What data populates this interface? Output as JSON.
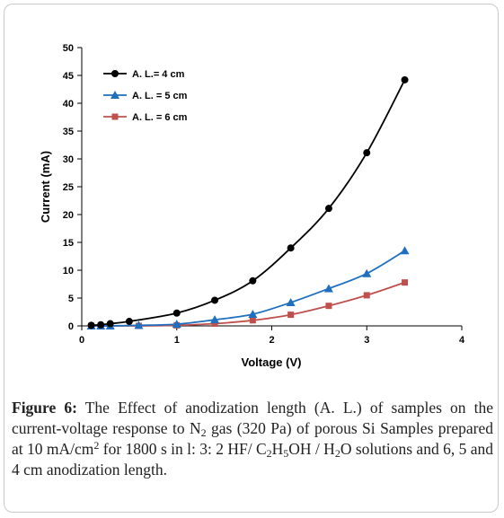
{
  "chart_data": {
    "type": "line",
    "xlabel": "Voltage (V)",
    "ylabel": "Current (mA)",
    "xlim": [
      0,
      4
    ],
    "ylim": [
      0,
      50
    ],
    "xticks": [
      "0",
      "1",
      "2",
      "3",
      "4"
    ],
    "yticks": [
      "0",
      "5",
      "10",
      "15",
      "20",
      "25",
      "30",
      "35",
      "40",
      "45",
      "50"
    ],
    "grid": false,
    "legend_position": "top-left",
    "series": [
      {
        "name": "A. L.= 4 cm",
        "color": "#000000",
        "marker": "circle",
        "x": [
          0.1,
          0.2,
          0.3,
          0.5,
          1.0,
          1.4,
          1.8,
          2.2,
          2.6,
          3.0,
          3.4
        ],
        "y": [
          0.1,
          0.2,
          0.4,
          0.8,
          2.3,
          4.6,
          8.1,
          14.0,
          21.1,
          31.1,
          44.2
        ]
      },
      {
        "name": "A. L. = 5 cm",
        "color": "#1f6fbf",
        "marker": "triangle",
        "x": [
          0.1,
          0.2,
          0.3,
          0.6,
          1.0,
          1.4,
          1.8,
          2.2,
          2.6,
          3.0,
          3.4
        ],
        "y": [
          0.0,
          0.0,
          0.0,
          0.1,
          0.3,
          1.1,
          2.1,
          4.2,
          6.7,
          9.4,
          13.5
        ]
      },
      {
        "name": "A. L. = 6 cm",
        "color": "#c0504d",
        "marker": "square",
        "x": [
          0.1,
          0.2,
          0.3,
          0.6,
          1.0,
          1.4,
          1.8,
          2.2,
          2.6,
          3.0,
          3.4
        ],
        "y": [
          0.0,
          0.0,
          0.0,
          0.0,
          0.1,
          0.4,
          1.0,
          2.0,
          3.6,
          5.5,
          7.8
        ]
      }
    ]
  },
  "caption": {
    "label": "Figure 6:",
    "text_1": " The Effect of anodization length (A. L.) of samples on the current-voltage response to N",
    "sub_1": "2",
    "text_2": " gas (320 Pa) of porous Si Samples prepared at 10 mA/cm",
    "sup_1": "2",
    "text_3": " for 1800 s in l: 3: 2 HF/ C",
    "sub_2": "2",
    "text_4": "H",
    "sub_3": "5",
    "text_5": "OH / H",
    "sub_4": "2",
    "text_6": "O solutions and 6, 5 and 4 cm anodization length."
  }
}
